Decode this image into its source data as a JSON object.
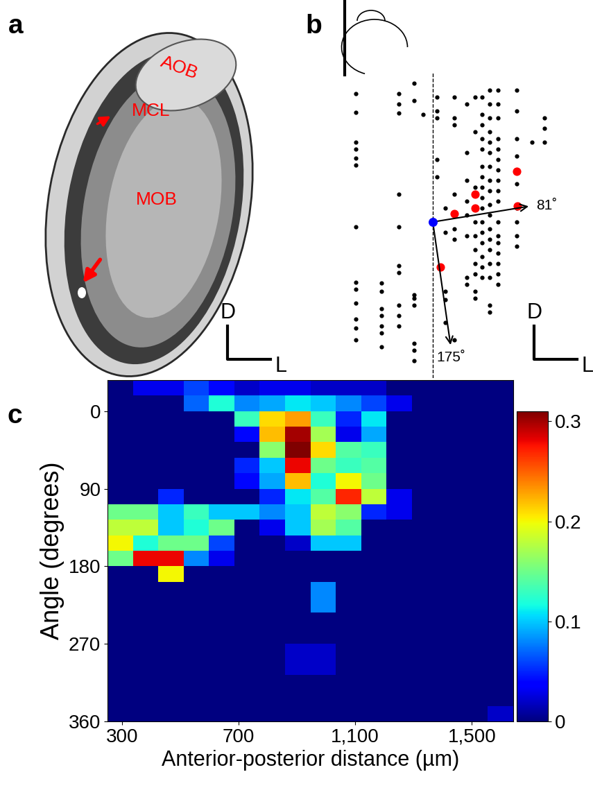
{
  "panel_a": {
    "label": "a",
    "regions": [
      "AOB",
      "MCL",
      "MOB"
    ],
    "scale_bar": {
      "vertical": "D",
      "horizontal": "L"
    }
  },
  "panel_b": {
    "label": "b",
    "type": "scatter",
    "xlim": [
      -150,
      180
    ],
    "ylim": [
      -225,
      215
    ],
    "points": [
      {
        "x": -111,
        "y": [
          185,
          158,
          115,
          105,
          92,
          82,
          -7,
          -87,
          -97,
          -117,
          -140,
          -153,
          -170
        ]
      },
      {
        "x": -74,
        "y": [
          -88,
          -100,
          -125,
          -135,
          -150,
          -160,
          -180
        ]
      },
      {
        "x": -49,
        "y": [
          185,
          170,
          157,
          40,
          -7,
          -63,
          -73,
          -120,
          -135,
          -150
        ]
      },
      {
        "x": -27,
        "y": [
          200,
          175,
          -105,
          -110,
          -120,
          -175,
          -185,
          -200
        ]
      },
      {
        "x": -14,
        "y": [
          155
        ]
      },
      {
        "x": 6,
        "y": [
          180,
          160,
          150,
          90,
          65
        ]
      },
      {
        "x": 18,
        "y": [
          20,
          -15,
          -100,
          -112,
          -145
        ]
      },
      {
        "x": 31,
        "y": [
          180,
          150,
          140,
          40,
          10,
          -10,
          -25,
          -170
        ]
      },
      {
        "x": 49,
        "y": [
          170,
          100,
          60,
          30,
          10,
          -20,
          -80,
          -90
        ]
      },
      {
        "x": 61,
        "y": [
          180,
          130,
          50,
          20,
          0,
          -20,
          -40,
          -60,
          -75,
          -100,
          -110
        ]
      },
      {
        "x": 71,
        "y": [
          180,
          155,
          140,
          120,
          105,
          80,
          65,
          50,
          35,
          20,
          0,
          -15,
          -30,
          -50,
          -65,
          -80
        ]
      },
      {
        "x": 82,
        "y": [
          190,
          170,
          150,
          130,
          115,
          100,
          80,
          60,
          45,
          25,
          10,
          -10,
          -25,
          -40,
          -60,
          -80,
          -120,
          -130
        ]
      },
      {
        "x": 94,
        "y": [
          190,
          170,
          150,
          120,
          105,
          90,
          75,
          60,
          45,
          30,
          0,
          -20,
          -30,
          -45,
          -60,
          -75,
          -90
        ]
      },
      {
        "x": 121,
        "y": [
          190,
          160,
          120,
          95,
          75,
          55,
          20,
          0,
          -20,
          -35
        ]
      },
      {
        "x": 143,
        "y": [
          115
        ]
      },
      {
        "x": 161,
        "y": [
          150,
          135,
          115
        ]
      }
    ],
    "highlighted": [
      [
        121,
        73
      ],
      [
        61,
        40
      ],
      [
        61,
        20
      ],
      [
        31,
        12
      ],
      [
        122,
        23
      ],
      [
        11,
        -65
      ]
    ],
    "origin": [
      0,
      0
    ],
    "vectors": [
      {
        "end": [
          141,
          23
        ],
        "label": "81˚"
      },
      {
        "end": [
          26,
          -180
        ],
        "label": "175˚"
      }
    ],
    "scale_bar": {
      "vertical": "D",
      "horizontal": "L"
    }
  },
  "chart_data": {
    "type": "heatmap",
    "label": "c",
    "x_label": "Anterior-posterior distance (µm)",
    "y_label": "Angle (degrees)",
    "xlim": [
      250,
      1642
    ],
    "ylim": [
      360,
      -36
    ],
    "xticks": [
      300,
      700,
      {
        "value": 1100,
        "label": "1,100"
      },
      {
        "value": 1500,
        "label": "1,500"
      }
    ],
    "yticks": [
      0,
      90,
      180,
      270,
      360
    ],
    "x_edges": [
      250,
      337,
      424,
      511,
      598,
      685,
      772,
      859,
      946,
      1033,
      1120,
      1207,
      1294,
      1381,
      1468,
      1555,
      1642
    ],
    "y_edges": [
      -36,
      -18,
      0,
      18,
      36,
      54,
      72,
      90,
      108,
      126,
      144,
      162,
      180,
      198,
      216,
      234,
      252,
      270,
      288,
      306,
      324,
      342,
      360
    ],
    "cells": [
      [
        0,
        0.03,
        0.03,
        0.06,
        0.04,
        0.02,
        0.03,
        0.03,
        0.02,
        0.02,
        0.02,
        0,
        0,
        0,
        0,
        0
      ],
      [
        0,
        0,
        0,
        0.07,
        0.12,
        0.08,
        0.09,
        0.11,
        0.1,
        0.08,
        0.06,
        0.03,
        0,
        0,
        0,
        0
      ],
      [
        0,
        0,
        0,
        0,
        0,
        0.13,
        0.21,
        0.23,
        0.13,
        0.05,
        0.11,
        0,
        0,
        0,
        0,
        0
      ],
      [
        0,
        0,
        0,
        0,
        0,
        0.04,
        0.22,
        0.3,
        0.17,
        0.03,
        0.09,
        0,
        0,
        0,
        0,
        0
      ],
      [
        0,
        0,
        0,
        0,
        0,
        0,
        0.16,
        0.31,
        0.21,
        0.14,
        0.13,
        0,
        0,
        0,
        0,
        0
      ],
      [
        0,
        0,
        0,
        0,
        0,
        0.05,
        0.1,
        0.28,
        0.15,
        0.13,
        0.14,
        0,
        0,
        0,
        0,
        0
      ],
      [
        0,
        0,
        0,
        0,
        0,
        0.04,
        0.09,
        0.22,
        0.12,
        0.2,
        0.15,
        0,
        0,
        0,
        0,
        0
      ],
      [
        0,
        0,
        0.05,
        0,
        0,
        0,
        0.05,
        0.11,
        0.14,
        0.27,
        0.18,
        0.03,
        0,
        0,
        0,
        0
      ],
      [
        0.15,
        0.15,
        0.1,
        0.13,
        0.1,
        0.1,
        0.08,
        0.1,
        0.18,
        0.16,
        0.05,
        0.03,
        0,
        0,
        0,
        0
      ],
      [
        0.18,
        0.18,
        0.1,
        0.12,
        0.15,
        0,
        0.03,
        0.1,
        0.17,
        0.14,
        0,
        0,
        0,
        0,
        0,
        0
      ],
      [
        0.2,
        0.12,
        0.15,
        0.15,
        0.06,
        0,
        0,
        0.02,
        0.1,
        0.1,
        0,
        0,
        0,
        0,
        0,
        0
      ],
      [
        0.15,
        0.28,
        0.28,
        0.08,
        0.03,
        0,
        0,
        0,
        0,
        0,
        0,
        0,
        0,
        0,
        0,
        0
      ],
      [
        0,
        0,
        0.2,
        0,
        0,
        0,
        0,
        0,
        0,
        0,
        0,
        0,
        0,
        0,
        0,
        0
      ],
      [
        0,
        0,
        0,
        0,
        0,
        0,
        0,
        0,
        0.08,
        0,
        0,
        0,
        0,
        0,
        0,
        0
      ],
      [
        0,
        0,
        0,
        0,
        0,
        0,
        0,
        0,
        0.08,
        0,
        0,
        0,
        0,
        0,
        0,
        0
      ],
      [
        0,
        0,
        0,
        0,
        0,
        0,
        0,
        0,
        0,
        0,
        0,
        0,
        0,
        0,
        0,
        0
      ],
      [
        0,
        0,
        0,
        0,
        0,
        0,
        0,
        0,
        0,
        0,
        0,
        0,
        0,
        0,
        0,
        0
      ],
      [
        0,
        0,
        0,
        0,
        0,
        0,
        0,
        0.02,
        0.02,
        0,
        0,
        0,
        0,
        0,
        0,
        0
      ],
      [
        0,
        0,
        0,
        0,
        0,
        0,
        0,
        0.02,
        0.02,
        0,
        0,
        0,
        0,
        0,
        0,
        0
      ],
      [
        0,
        0,
        0,
        0,
        0,
        0,
        0,
        0,
        0,
        0,
        0,
        0,
        0,
        0,
        0,
        0
      ],
      [
        0,
        0,
        0,
        0,
        0,
        0,
        0,
        0,
        0,
        0,
        0,
        0,
        0,
        0,
        0,
        0
      ],
      [
        0,
        0,
        0,
        0,
        0,
        0,
        0,
        0,
        0,
        0,
        0,
        0,
        0,
        0,
        0,
        0.02
      ]
    ],
    "colorbar_lim": [
      0,
      0.31
    ],
    "colorbar_ticks": [
      0,
      0.1,
      0.2,
      0.3
    ]
  }
}
